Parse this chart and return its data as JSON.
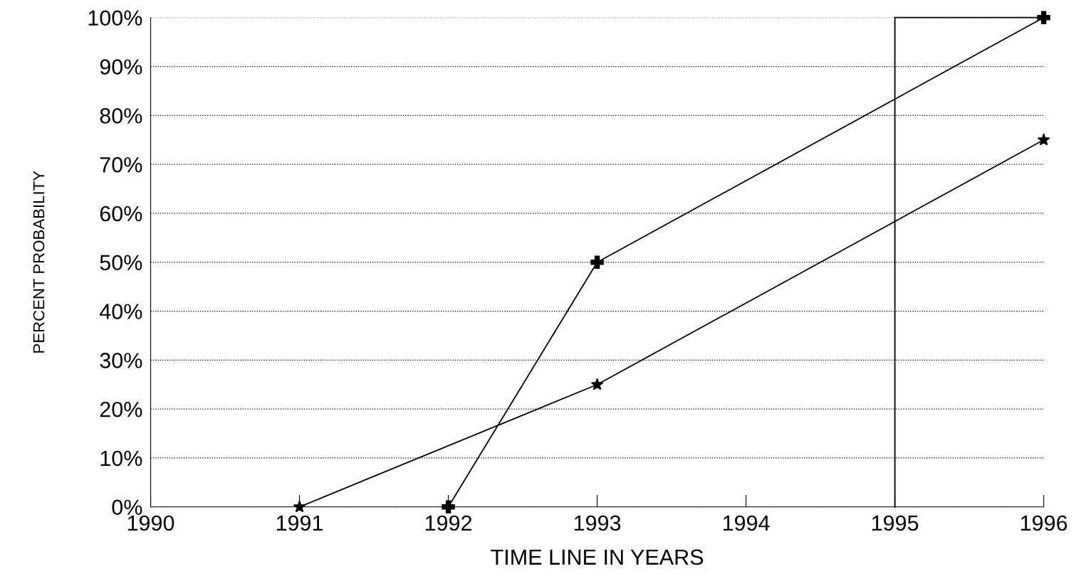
{
  "chart_data": {
    "type": "line",
    "xlabel": "TIME LINE IN YEARS",
    "ylabel": "PERCENT PROBABILITY",
    "series": [
      {
        "color": "#000000",
        "marker": "cross",
        "x": [
          1992,
          1993,
          1996
        ],
        "values": [
          0,
          50,
          100
        ]
      },
      {
        "color": "#000000",
        "marker": "star",
        "x": [
          1991,
          1993,
          1996
        ],
        "values": [
          0,
          25,
          75
        ]
      },
      {
        "color": "#000000",
        "marker": "none",
        "x": [
          1995,
          1995,
          1996
        ],
        "values": [
          0,
          100,
          100
        ]
      }
    ],
    "xlim": [
      1990,
      1996
    ],
    "xticks": [
      1990,
      1991,
      1992,
      1993,
      1994,
      1995,
      1996
    ],
    "ylim": [
      0,
      100
    ],
    "yticks": [
      {
        "value": 0,
        "label": "0%"
      },
      {
        "value": 10,
        "label": "10%"
      },
      {
        "value": 20,
        "label": "20%"
      },
      {
        "value": 30,
        "label": "30%"
      },
      {
        "value": 40,
        "label": "40%"
      },
      {
        "value": 50,
        "label": "50%"
      },
      {
        "value": 60,
        "label": "60%"
      },
      {
        "value": 70,
        "label": "70%"
      },
      {
        "value": 80,
        "label": "80%"
      },
      {
        "value": 90,
        "label": "90%"
      },
      {
        "value": 100,
        "label": "100%"
      }
    ],
    "grid": "y",
    "line_style": "solid"
  }
}
